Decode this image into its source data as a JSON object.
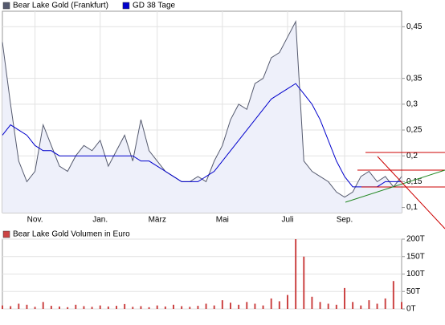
{
  "chart_data": [
    {
      "type": "line",
      "categories": [
        null,
        null,
        null,
        null,
        "Nov.",
        null,
        null,
        null,
        null,
        null,
        null,
        null,
        "Jan.",
        null,
        null,
        null,
        null,
        null,
        null,
        "März",
        null,
        null,
        null,
        null,
        null,
        null,
        null,
        "Mai",
        null,
        null,
        null,
        null,
        null,
        null,
        null,
        "Juli",
        null,
        null,
        null,
        null,
        null,
        null,
        "Sep.",
        null,
        null,
        null,
        null,
        null,
        null,
        null
      ],
      "series": [
        {
          "name": "Bear Lake Gold (Frankfurt)",
          "color": "#555a6e",
          "values": [
            0.42,
            0.3,
            0.19,
            0.15,
            0.17,
            0.26,
            0.22,
            0.18,
            0.17,
            0.2,
            0.22,
            0.21,
            0.23,
            0.18,
            0.21,
            0.24,
            0.19,
            0.27,
            0.21,
            0.19,
            0.17,
            0.16,
            0.15,
            0.15,
            0.16,
            0.15,
            0.19,
            0.22,
            0.27,
            0.3,
            0.29,
            0.34,
            0.35,
            0.39,
            0.4,
            0.43,
            0.46,
            0.19,
            0.17,
            0.16,
            0.15,
            0.13,
            0.12,
            0.13,
            0.16,
            0.17,
            0.15,
            0.16,
            0.14,
            0.16
          ]
        },
        {
          "name": "GD 38 Tage",
          "color": "#0000cc",
          "values": [
            0.24,
            0.26,
            0.25,
            0.24,
            0.22,
            0.21,
            0.21,
            0.2,
            0.2,
            0.2,
            0.2,
            0.2,
            0.2,
            0.2,
            0.2,
            0.2,
            0.2,
            0.19,
            0.19,
            0.18,
            0.17,
            0.16,
            0.15,
            0.15,
            0.15,
            0.16,
            0.17,
            0.19,
            0.21,
            0.23,
            0.25,
            0.27,
            0.29,
            0.31,
            0.32,
            0.33,
            0.34,
            0.32,
            0.3,
            0.27,
            0.23,
            0.19,
            0.16,
            0.14,
            0.14,
            0.14,
            0.14,
            0.15,
            0.15,
            0.15
          ]
        }
      ],
      "ylim": [
        0.09,
        0.48
      ],
      "yticks": [
        {
          "value": 0.1,
          "label": "0,1"
        },
        {
          "value": 0.15,
          "label": "0,15"
        },
        {
          "value": 0.2,
          "label": "0,2"
        },
        {
          "value": 0.25,
          "label": "0,25"
        },
        {
          "value": 0.3,
          "label": "0,3"
        },
        {
          "value": 0.35,
          "label": "0,35"
        },
        {
          "value": 0.45,
          "label": "0,45"
        }
      ],
      "grid": true
    },
    {
      "type": "bar",
      "series": [
        {
          "name": "Bear Lake Gold Volumen in Euro",
          "color": "#cc4444",
          "values": [
            10,
            8,
            15,
            12,
            6,
            20,
            9,
            7,
            5,
            12,
            8,
            6,
            10,
            7,
            9,
            14,
            6,
            8,
            5,
            10,
            7,
            12,
            8,
            6,
            9,
            15,
            10,
            25,
            18,
            12,
            20,
            15,
            10,
            30,
            22,
            40,
            200,
            150,
            35,
            20,
            15,
            12,
            60,
            20,
            10,
            25,
            15,
            30,
            80,
            20
          ]
        }
      ],
      "ylim": [
        0,
        200
      ],
      "yticks": [
        {
          "value": 0,
          "label": "0T"
        },
        {
          "value": 50,
          "label": "50T"
        },
        {
          "value": 100,
          "label": "100T"
        },
        {
          "value": 150,
          "label": "150T"
        },
        {
          "value": 200,
          "label": "200T"
        }
      ],
      "grid": true
    }
  ]
}
